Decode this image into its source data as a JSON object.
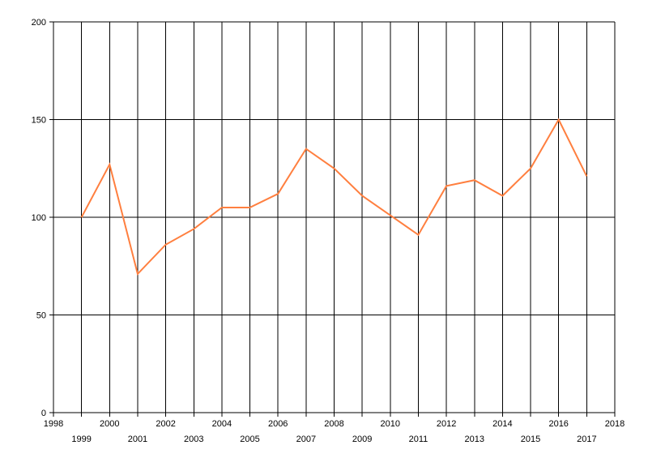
{
  "chart_data": {
    "type": "line",
    "title": "",
    "xlabel": "",
    "ylabel": "",
    "xlim": [
      1998,
      2018
    ],
    "ylim": [
      0,
      200
    ],
    "x_ticks": [
      1998,
      1999,
      2000,
      2001,
      2002,
      2003,
      2004,
      2005,
      2006,
      2007,
      2008,
      2009,
      2010,
      2011,
      2012,
      2013,
      2014,
      2015,
      2016,
      2017,
      2018
    ],
    "y_ticks": [
      0,
      50,
      100,
      150,
      200
    ],
    "grid": true,
    "legend": "none",
    "series": [
      {
        "color": "#ff7f3f",
        "x": [
          1999,
          2000,
          2001,
          2002,
          2003,
          2004,
          2005,
          2006,
          2007,
          2008,
          2009,
          2010,
          2011,
          2012,
          2013,
          2014,
          2015,
          2016,
          2017
        ],
        "values": [
          100,
          127,
          71,
          86,
          94,
          105,
          105,
          112,
          135,
          125,
          111,
          101,
          91,
          116,
          119,
          111,
          125,
          150,
          121
        ]
      }
    ]
  }
}
